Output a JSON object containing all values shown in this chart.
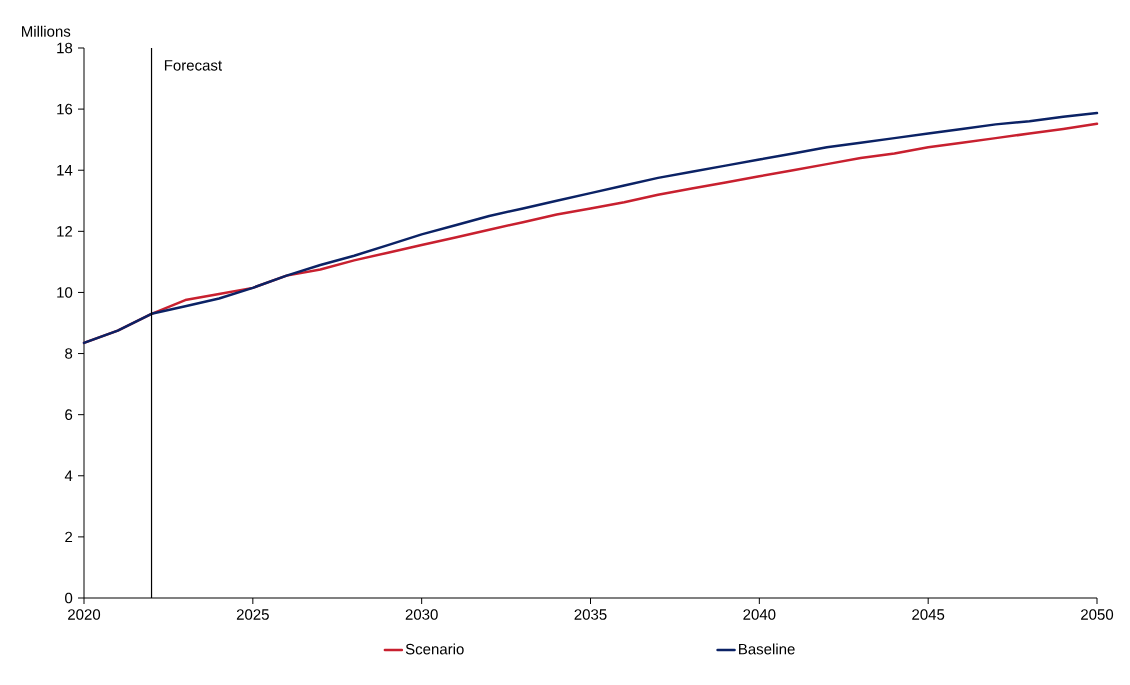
{
  "chart_data": {
    "type": "line",
    "ylabel": "Millions",
    "x": [
      2020,
      2021,
      2022,
      2023,
      2024,
      2025,
      2026,
      2027,
      2028,
      2029,
      2030,
      2031,
      2032,
      2033,
      2034,
      2035,
      2036,
      2037,
      2038,
      2039,
      2040,
      2041,
      2042,
      2043,
      2044,
      2045,
      2046,
      2047,
      2048,
      2049,
      2050
    ],
    "series": [
      {
        "name": "Scenario",
        "color": "#c8202f",
        "values": [
          8.35,
          8.75,
          9.3,
          9.75,
          9.95,
          10.15,
          10.55,
          10.75,
          11.05,
          11.3,
          11.55,
          11.8,
          12.05,
          12.3,
          12.55,
          12.75,
          12.95,
          13.2,
          13.4,
          13.6,
          13.8,
          14.0,
          14.2,
          14.4,
          14.55,
          14.75,
          14.9,
          15.05,
          15.2,
          15.35,
          15.52
        ]
      },
      {
        "name": "Baseline",
        "color": "#0b2265",
        "values": [
          8.35,
          8.75,
          9.3,
          9.55,
          9.8,
          10.15,
          10.55,
          10.9,
          11.2,
          11.55,
          11.9,
          12.2,
          12.5,
          12.75,
          13.0,
          13.25,
          13.5,
          13.75,
          13.95,
          14.15,
          14.35,
          14.55,
          14.75,
          14.9,
          15.05,
          15.2,
          15.35,
          15.5,
          15.6,
          15.75,
          15.87
        ]
      }
    ],
    "xlim": [
      2020,
      2050
    ],
    "xticks": [
      2020,
      2025,
      2030,
      2035,
      2040,
      2045,
      2050
    ],
    "ylim": [
      0,
      18
    ],
    "yticks": [
      0,
      2,
      4,
      6,
      8,
      10,
      12,
      14,
      16,
      18
    ],
    "ref_lines": [
      {
        "axis": "x",
        "value": 2022,
        "label": "Forecast",
        "color": "#000000"
      }
    ],
    "grid": false,
    "legend": "bottom",
    "marker": "none",
    "line_style": "solid"
  }
}
